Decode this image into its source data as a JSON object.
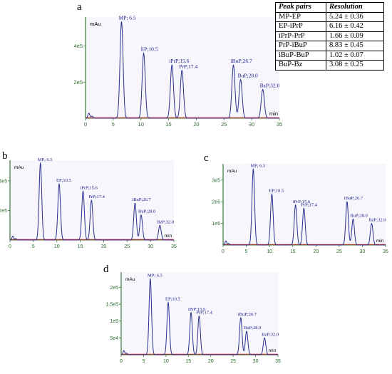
{
  "panels": [
    {
      "id": "a",
      "label": "a",
      "y_unit": "mAu",
      "x_unit": "min",
      "x_ticks": [
        "0",
        "5",
        "10",
        "15",
        "20",
        "25",
        "30",
        "35"
      ],
      "y_ticks": [
        "2e5",
        "4e5"
      ]
    },
    {
      "id": "b",
      "label": "b",
      "y_unit": "mAu",
      "x_unit": "min",
      "x_ticks": [
        "0",
        "5",
        "10",
        "15",
        "20",
        "25",
        "30",
        "35"
      ],
      "y_ticks": [
        "2e5",
        "4e5"
      ]
    },
    {
      "id": "c",
      "label": "c",
      "y_unit": "mAu",
      "x_unit": "min",
      "x_ticks": [
        "0",
        "5",
        "10",
        "15",
        "20",
        "25",
        "30",
        "35"
      ],
      "y_ticks": [
        "1e5",
        "2e5",
        "3e5"
      ]
    },
    {
      "id": "d",
      "label": "d",
      "y_unit": "mAu",
      "x_unit": "min",
      "x_ticks": [
        "0",
        "5",
        "10",
        "15",
        "20",
        "25",
        "30",
        "35"
      ],
      "y_ticks": [
        "5e4",
        "1e5",
        "1.5e5",
        "2e5"
      ]
    }
  ],
  "resolution_table": {
    "headers": [
      "Peak pairs",
      "Resolution"
    ],
    "rows": [
      [
        "MP-EP",
        "5.24 ± 0.36"
      ],
      [
        "EP-iPrP",
        "6.16 ± 0.42"
      ],
      [
        "iPrP-PrP",
        "1.66 ± 0.09"
      ],
      [
        "PrP-iBuP",
        "8.83 ± 0.45"
      ],
      [
        "iBuP-BuP",
        "1.02 ± 0.07"
      ],
      [
        "BuP-Bz",
        "3.08 ± 0.25"
      ]
    ]
  },
  "colors": {
    "trace": "#2b2f8f",
    "axis": "#3a7a3a",
    "baseline": "#cc2222",
    "label": "#1a1a8c"
  },
  "chart_data": [
    {
      "type": "line",
      "title": "a",
      "xlabel": "min",
      "ylabel": "mAu",
      "xlim": [
        0,
        35
      ],
      "ylim": [
        0,
        560000
      ],
      "peaks": [
        {
          "label": "MP; 6.5",
          "x": 6.5,
          "y": 535000
        },
        {
          "label": "EP;10.5",
          "x": 10.5,
          "y": 360000
        },
        {
          "label": "iPrP;15.6",
          "x": 15.6,
          "y": 295000
        },
        {
          "label": "PrP;17.4",
          "x": 17.4,
          "y": 265000
        },
        {
          "label": "iBuP;26.7",
          "x": 26.7,
          "y": 295000
        },
        {
          "label": "BuP;28.0",
          "x": 28.0,
          "y": 215000
        },
        {
          "label": "BzP;32.0",
          "x": 32.0,
          "y": 160000
        }
      ]
    },
    {
      "type": "line",
      "title": "b",
      "xlabel": "min",
      "ylabel": "mAu",
      "xlim": [
        0,
        35
      ],
      "ylim": [
        0,
        540000
      ],
      "peaks": [
        {
          "label": "MP; 6.5",
          "x": 6.5,
          "y": 520000
        },
        {
          "label": "EP;10.5",
          "x": 10.5,
          "y": 380000
        },
        {
          "label": "iPrP;15.6",
          "x": 15.6,
          "y": 330000
        },
        {
          "label": "PrP;17.4",
          "x": 17.4,
          "y": 270000
        },
        {
          "label": "iBuP;26.7",
          "x": 26.7,
          "y": 250000
        },
        {
          "label": "BuP;28.0",
          "x": 28.0,
          "y": 170000
        },
        {
          "label": "BzP;32.0",
          "x": 32.0,
          "y": 100000
        }
      ]
    },
    {
      "type": "line",
      "title": "c",
      "xlabel": "min",
      "ylabel": "mAu",
      "xlim": [
        0,
        35
      ],
      "ylim": [
        0,
        375000
      ],
      "peaks": [
        {
          "label": "MP; 6.5",
          "x": 6.5,
          "y": 350000
        },
        {
          "label": "EP;10.5",
          "x": 10.5,
          "y": 235000
        },
        {
          "label": "iPrP;15.6",
          "x": 15.6,
          "y": 185000
        },
        {
          "label": "PrP;17.4",
          "x": 17.4,
          "y": 170000
        },
        {
          "label": "iBuP;26.7",
          "x": 26.7,
          "y": 200000
        },
        {
          "label": "BuP;28.0",
          "x": 28.0,
          "y": 120000
        },
        {
          "label": "BzP;32.0",
          "x": 32.0,
          "y": 100000
        }
      ]
    },
    {
      "type": "line",
      "title": "d",
      "xlabel": "min",
      "ylabel": "mAu",
      "xlim": [
        0,
        35
      ],
      "ylim": [
        0,
        245000
      ],
      "peaks": [
        {
          "label": "MP; 6.5",
          "x": 6.5,
          "y": 225000
        },
        {
          "label": "EP;10.5",
          "x": 10.5,
          "y": 155000
        },
        {
          "label": "iPrP;15.6",
          "x": 15.6,
          "y": 125000
        },
        {
          "label": "PrP;17.4",
          "x": 17.4,
          "y": 115000
        },
        {
          "label": "iBuP;26.7",
          "x": 26.7,
          "y": 110000
        },
        {
          "label": "BuP;28.0",
          "x": 28.0,
          "y": 70000
        },
        {
          "label": "BzP;32.0",
          "x": 32.0,
          "y": 50000
        }
      ]
    }
  ]
}
